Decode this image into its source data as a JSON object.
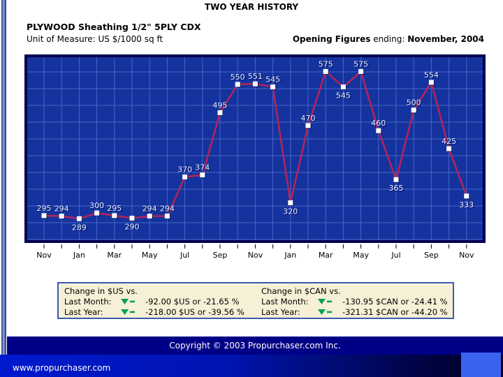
{
  "header": {
    "title": "TWO YEAR HISTORY",
    "product_title": "PLYWOOD Sheathing 1/2\" 5PLY CDX",
    "unit_label": "Unit of Measure: US $/1000 sq ft",
    "opening_bold": "Opening Figures",
    "opening_mid": " ending: ",
    "opening_date": "November, 2004"
  },
  "chart_data": {
    "type": "line",
    "title": "TWO YEAR HISTORY",
    "ylabel": "US $/1000 sq ft",
    "values": [
      295,
      294,
      289,
      300,
      295,
      290,
      294,
      294,
      370,
      374,
      495,
      550,
      551,
      545,
      320,
      470,
      575,
      545,
      575,
      460,
      365,
      500,
      554,
      425,
      333
    ],
    "x_tick_labels": [
      "Nov",
      "Jan",
      "Mar",
      "May",
      "Jul",
      "Sep",
      "Nov",
      "Jan",
      "Mar",
      "May",
      "Jul",
      "Sep",
      "Nov"
    ],
    "x_tick_every": 2,
    "ylim": [
      250,
      600
    ],
    "grid": true,
    "legend": "none",
    "label_below_indices": [
      2,
      5,
      14,
      17,
      20,
      24
    ],
    "colors": {
      "plot_bg": "#14339e",
      "plot_border": "#000050",
      "grid": "#4a66c8",
      "line": "#b2245a",
      "marker": "#ffffff",
      "point_label": "#e9ecff",
      "point_label_shadow": "#001060",
      "axis_text": "#000000"
    }
  },
  "summary": {
    "panels": [
      {
        "title": "Change in $US vs.",
        "rows": [
          {
            "label": "Last Month:",
            "icon": "down-triangle-minus",
            "value": "-92.00 $US or -21.65 %"
          },
          {
            "label": "Last Year:",
            "icon": "down-triangle-minus",
            "value": "-218.00 $US or -39.56 %"
          }
        ]
      },
      {
        "title": "Change in $CAN vs.",
        "rows": [
          {
            "label": "Last Month:",
            "icon": "down-triangle-minus",
            "value": "-130.95 $CAN or -24.41 %"
          },
          {
            "label": "Last Year:",
            "icon": "down-triangle-minus",
            "value": "-321.31 $CAN or -44.20 %"
          }
        ]
      }
    ],
    "icon_color": "#00a05c"
  },
  "footer": {
    "copyright": "Copyright © 2003 Propurchaser.com Inc.",
    "website": "www.propurchaser.com"
  }
}
